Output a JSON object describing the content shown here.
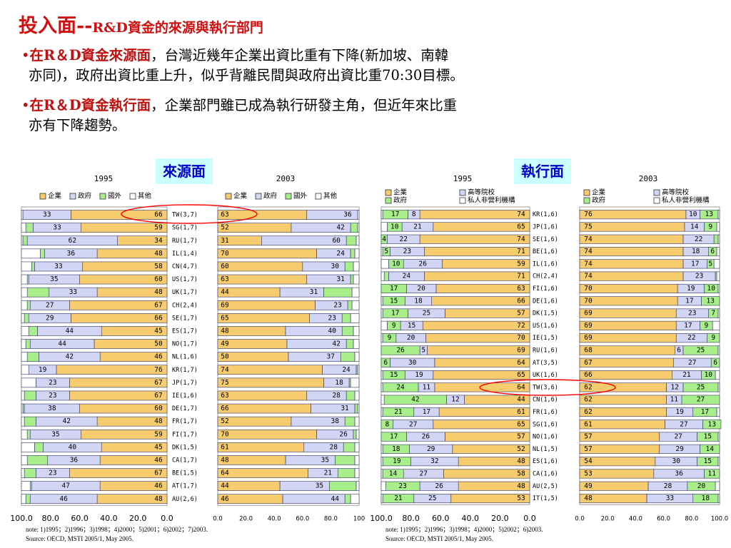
{
  "header": {
    "title_main": "投入面--",
    "title_sub": "R&D資金的來源與執行部門"
  },
  "bullets": [
    {
      "marker": "•",
      "highlight": "在R＆D資金來源面",
      "line1": "，台灣近幾年企業出資比重有下降(新加坡、南韓",
      "line2": "亦同)，政府出資比重上升，似乎背離民間與政府出資比重70:30目標。"
    },
    {
      "marker": "•",
      "highlight": "在R＆D資金執行面",
      "line1": "，企業部門雖已成為執行研發主角，但近年來比重",
      "line2": "亦有下降趨勢。"
    }
  ],
  "sections": {
    "source_label": "來源面",
    "exec_label": "執行面"
  },
  "notes": {
    "source_note": "note:  1)1995；2)1996；3)1998；4)2000；5)2001；6)2002；7)2003.",
    "source_src": "Source: OECD, MSTI 2005/1, May 2005.",
    "exec_note": "note:  1)1995；2)1996；3)1998；4)2000；5)2002；6)2003.",
    "exec_src": "Source: OECD, MSTI 2005/1, May 2005."
  },
  "colors": {
    "business": "#f7cc6e",
    "government": "#d3d5f5",
    "abroad": "#a8ee8a",
    "other": "#ffffff",
    "higher_edu": "#d3d5f5",
    "private_np": "#ffffff",
    "highlight_oval": "#ff0000",
    "bar_border": "#333366"
  },
  "chart_data": [
    {
      "type": "bar",
      "title": "1995",
      "orientation": "horizontal-reversed",
      "categories": [
        "TW(3,7)",
        "SG(1,7)",
        "RU(1,7)",
        "IL(1,4)",
        "CN(4,7)",
        "US(1,7)",
        "UK(1,7)",
        "CH(2,4)",
        "SE(1,7)",
        "ES(1,7)",
        "NO(1,7)",
        "NL(1,6)",
        "KR(1,7)",
        "JP(1,7)",
        "IE(1,6)",
        "DE(1,7)",
        "FR(1,7)",
        "FI(1,7)",
        "DK(1,5)",
        "CA(1,7)",
        "BE(1,5)",
        "AT(1,7)",
        "AU(2,6)"
      ],
      "legend": [
        "企業",
        "政府",
        "國外",
        "其他"
      ],
      "series": [
        {
          "name": "企業",
          "values": [
            66,
            59,
            34,
            48,
            58,
            60,
            48,
            67,
            66,
            45,
            50,
            46,
            76,
            67,
            67,
            60,
            48,
            59,
            45,
            46,
            67,
            46,
            48
          ]
        },
        {
          "name": "政府",
          "values": [
            33,
            33,
            62,
            36,
            33,
            35,
            33,
            27,
            29,
            44,
            44,
            42,
            19,
            23,
            23,
            38,
            42,
            35,
            40,
            36,
            23,
            47,
            46
          ]
        },
        {
          "name": "國外",
          "values": [
            0,
            5,
            3,
            3,
            2,
            1,
            15,
            2,
            3,
            6,
            3,
            8,
            0,
            0,
            8,
            1,
            8,
            2,
            6,
            14,
            8,
            1,
            3
          ]
        },
        {
          "name": "其他",
          "values": [
            1,
            3,
            1,
            13,
            7,
            4,
            4,
            4,
            2,
            5,
            3,
            4,
            5,
            10,
            2,
            1,
            2,
            4,
            9,
            4,
            2,
            6,
            3
          ]
        }
      ],
      "value_labels": {
        "企業": [
          66,
          59,
          34,
          48,
          58,
          60,
          48,
          67,
          66,
          45,
          50,
          46,
          76,
          67,
          67,
          60,
          48,
          59,
          45,
          46,
          67,
          46,
          48
        ],
        "政府": [
          33,
          33,
          62,
          36,
          33,
          35,
          33,
          27,
          29,
          44,
          44,
          42,
          19,
          23,
          23,
          38,
          42,
          35,
          40,
          36,
          23,
          47,
          46
        ]
      },
      "xticks": [
        "100.0",
        "80.0",
        "60.0",
        "40.0",
        "20.0",
        "0.0"
      ],
      "xlim": [
        0,
        100
      ]
    },
    {
      "type": "bar",
      "title": "2003",
      "orientation": "horizontal",
      "categories": [
        "TW(3,7)",
        "SG(1,7)",
        "RU(1,7)",
        "IL(1,4)",
        "CN(4,7)",
        "US(1,7)",
        "UK(1,7)",
        "CH(2,4)",
        "SE(1,7)",
        "ES(1,7)",
        "NO(1,7)",
        "NL(1,6)",
        "KR(1,7)",
        "JP(1,7)",
        "IE(1,6)",
        "DE(1,7)",
        "FR(1,7)",
        "FI(1,7)",
        "DK(1,5)",
        "CA(1,7)",
        "BE(1,5)",
        "AT(1,7)",
        "AU(2,6)"
      ],
      "legend": [
        "企業",
        "政府",
        "國外",
        "其他"
      ],
      "series": [
        {
          "name": "企業",
          "values": [
            63,
            52,
            31,
            70,
            60,
            63,
            44,
            69,
            65,
            48,
            49,
            50,
            74,
            75,
            63,
            66,
            52,
            70,
            61,
            48,
            64,
            44,
            46
          ]
        },
        {
          "name": "政府",
          "values": [
            36,
            42,
            60,
            24,
            30,
            31,
            31,
            23,
            23,
            40,
            42,
            37,
            24,
            18,
            28,
            31,
            38,
            26,
            28,
            35,
            21,
            35,
            44
          ]
        },
        {
          "name": "國外",
          "values": [
            0,
            5,
            7,
            3,
            6,
            2,
            20,
            3,
            6,
            8,
            5,
            10,
            1,
            1,
            6,
            2,
            7,
            2,
            8,
            14,
            12,
            19,
            4
          ]
        },
        {
          "name": "其他",
          "values": [
            1,
            1,
            2,
            3,
            4,
            4,
            5,
            5,
            6,
            4,
            4,
            3,
            1,
            6,
            3,
            1,
            3,
            2,
            3,
            3,
            3,
            2,
            6
          ]
        }
      ],
      "value_labels": {
        "企業": [
          63,
          52,
          31,
          70,
          60,
          63,
          44,
          69,
          65,
          48,
          49,
          50,
          74,
          75,
          63,
          66,
          52,
          70,
          61,
          48,
          64,
          44,
          46
        ],
        "政府": [
          36,
          42,
          60,
          24,
          30,
          31,
          31,
          23,
          23,
          40,
          42,
          37,
          24,
          18,
          28,
          31,
          38,
          26,
          28,
          35,
          21,
          35,
          44
        ]
      },
      "xticks": [
        "0.0",
        "20.0",
        "40.0",
        "60.0",
        "80.0",
        "100"
      ],
      "xlim": [
        0,
        100
      ]
    },
    {
      "type": "bar",
      "title": "1995",
      "orientation": "horizontal-reversed",
      "categories": [
        "KR(1,6)",
        "JP(1,6)",
        "SE(1,6)",
        "BE(1,6)",
        "IL(1,6)",
        "CH(2,4)",
        "FI(1,6)",
        "DE(1,6)",
        "DK(1,5)",
        "US(1,6)",
        "IE(1,5)",
        "RU(1,6)",
        "AT(3,5)",
        "UK(1,6)",
        "TW(3,6)",
        "CN(1,6)",
        "FR(1,6)",
        "SG(1,6)",
        "NO(1,6)",
        "NL(1,5)",
        "ES(1,6)",
        "CA(1,6)",
        "AU(2,5)",
        "IT(1,5)"
      ],
      "legend": [
        "企業",
        "高等院校",
        "政府",
        "私人非營利機構"
      ],
      "series": [
        {
          "name": "企業",
          "values": [
            74,
            65,
            74,
            71,
            59,
            71,
            63,
            66,
            57,
            72,
            70,
            69,
            64,
            65,
            64,
            44,
            61,
            65,
            57,
            52,
            48,
            58,
            48,
            53
          ]
        },
        {
          "name": "高等院校",
          "values": [
            8,
            21,
            22,
            23,
            26,
            24,
            20,
            18,
            25,
            15,
            20,
            5,
            30,
            19,
            11,
            12,
            17,
            27,
            26,
            29,
            32,
            27,
            26,
            25
          ]
        },
        {
          "name": "政府",
          "values": [
            17,
            10,
            4,
            5,
            10,
            3,
            17,
            15,
            17,
            9,
            9,
            26,
            6,
            15,
            24,
            42,
            21,
            8,
            17,
            18,
            19,
            14,
            23,
            21
          ]
        },
        {
          "name": "私人非營利機構",
          "values": [
            1,
            4,
            0,
            1,
            5,
            2,
            0,
            1,
            1,
            4,
            1,
            0,
            0,
            1,
            1,
            2,
            1,
            0,
            0,
            1,
            1,
            1,
            3,
            1
          ]
        }
      ],
      "value_labels": {
        "企業": [
          74,
          65,
          74,
          71,
          59,
          71,
          63,
          66,
          57,
          72,
          70,
          69,
          64,
          65,
          64,
          44,
          61,
          65,
          57,
          52,
          48,
          58,
          48,
          53
        ],
        "高等院校": [
          8,
          21,
          22,
          23,
          26,
          24,
          20,
          18,
          25,
          15,
          20,
          5,
          30,
          19,
          11,
          12,
          17,
          27,
          26,
          29,
          32,
          27,
          26,
          25
        ],
        "政府": [
          17,
          10,
          4,
          5,
          10,
          3,
          17,
          15,
          17,
          9,
          9,
          26,
          6,
          15,
          24,
          42,
          21,
          8,
          17,
          18,
          19,
          14,
          23,
          21
        ]
      },
      "xticks": [
        "100.0",
        "80.0",
        "60.0",
        "40.0",
        "20.0",
        "0.0"
      ],
      "xlim": [
        0,
        100
      ]
    },
    {
      "type": "bar",
      "title": "2003",
      "orientation": "horizontal",
      "categories": [
        "KR(1,6)",
        "JP(1,6)",
        "SE(1,6)",
        "BE(1,6)",
        "IL(1,6)",
        "CH(2,4)",
        "FI(1,6)",
        "DE(1,6)",
        "DK(1,5)",
        "US(1,6)",
        "IE(1,5)",
        "RU(1,6)",
        "AT(3,5)",
        "UK(1,6)",
        "TW(3,6)",
        "CN(1,6)",
        "FR(1,6)",
        "SG(1,6)",
        "NO(1,6)",
        "NL(1,5)",
        "ES(1,6)",
        "CA(1,6)",
        "AU(2,5)",
        "IT(1,5)"
      ],
      "legend": [
        "企業",
        "高等院校",
        "政府",
        "私人非營利機構"
      ],
      "series": [
        {
          "name": "企業",
          "values": [
            76,
            75,
            74,
            74,
            74,
            74,
            70,
            70,
            69,
            69,
            69,
            68,
            67,
            66,
            62,
            62,
            62,
            61,
            57,
            57,
            54,
            53,
            49,
            48
          ]
        },
        {
          "name": "高等院校",
          "values": [
            10,
            14,
            22,
            18,
            17,
            23,
            19,
            17,
            23,
            17,
            22,
            6,
            27,
            21,
            12,
            11,
            19,
            27,
            27,
            29,
            30,
            36,
            28,
            33
          ]
        },
        {
          "name": "政府",
          "values": [
            13,
            9,
            3,
            6,
            5,
            1,
            10,
            13,
            7,
            9,
            9,
            25,
            6,
            10,
            25,
            27,
            17,
            13,
            15,
            14,
            15,
            11,
            20,
            18
          ]
        },
        {
          "name": "私人非營利機構",
          "values": [
            1,
            2,
            1,
            2,
            4,
            2,
            1,
            0,
            1,
            5,
            0,
            1,
            0,
            3,
            1,
            0,
            2,
            0,
            1,
            0,
            1,
            0,
            3,
            1
          ]
        }
      ],
      "value_labels": {
        "高等院校": [
          10,
          14,
          22,
          18,
          17,
          23,
          19,
          17,
          23,
          17,
          22,
          6,
          27,
          21,
          12,
          11,
          19,
          27,
          27,
          29,
          30,
          36,
          28,
          33
        ],
        "政府": [
          13,
          9,
          3,
          6,
          5,
          1,
          10,
          13,
          7,
          9,
          9,
          25,
          6,
          10,
          25,
          27,
          17,
          13,
          15,
          14,
          15,
          11,
          20,
          18
        ]
      },
      "end_labels": [
        76,
        75,
        74,
        74,
        74,
        74,
        70,
        70,
        69,
        69,
        69,
        68,
        67,
        66,
        62,
        62,
        62,
        61,
        57,
        57,
        54,
        53,
        49,
        48
      ],
      "xticks": [
        "0.0",
        "20.0",
        "40.0",
        "60.0",
        "80.0",
        "100.0"
      ],
      "xlim": [
        0,
        100
      ]
    }
  ]
}
